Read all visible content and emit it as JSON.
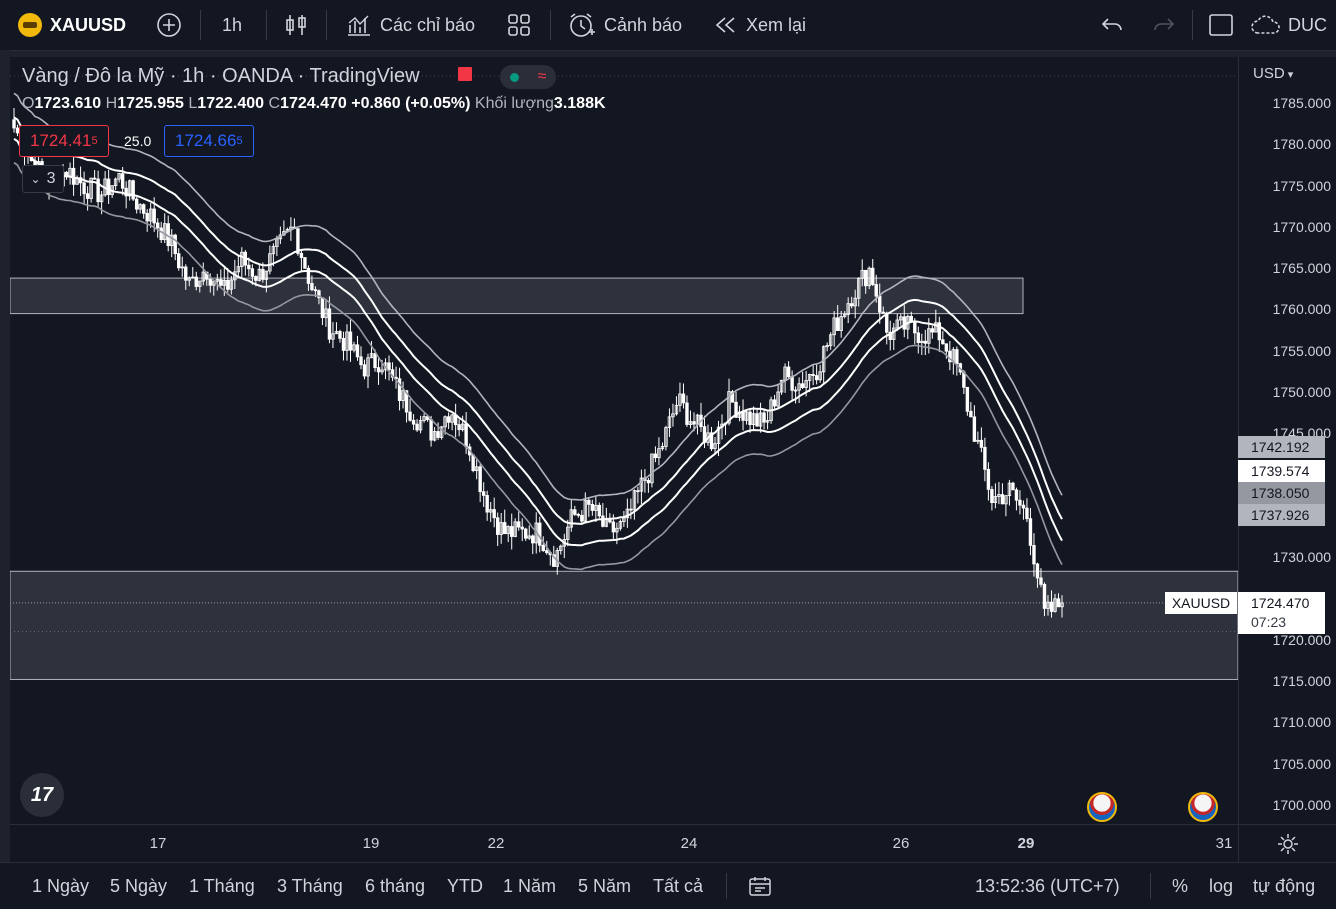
{
  "toolbar": {
    "symbol": "XAUUSD",
    "interval": "1h",
    "indicators": "Các chỉ báo",
    "alerts": "Cảnh báo",
    "replay": "Xem lại",
    "account": "DUC"
  },
  "legend": {
    "title": "Vàng / Đô la Mỹ · 1h · OANDA · TradingView",
    "open_label": "O",
    "open": "1723.610",
    "high_label": "H",
    "high": "1725.955",
    "low_label": "L",
    "low": "1722.400",
    "close_label": "C",
    "close": "1724.470",
    "change": "+0.860 (+0.05%)",
    "volume_label": "Khối lượng",
    "volume": "3.188K",
    "sell_price": "1724.41",
    "sell_price_sup": "5",
    "spread": "25.0",
    "buy_price": "1724.66",
    "buy_price_sup": "5",
    "collapse_count": "3"
  },
  "price_axis": {
    "currency": "USD",
    "ticks": [
      "1785.000",
      "1780.000",
      "1775.000",
      "1770.000",
      "1765.000",
      "1760.000",
      "1755.000",
      "1750.000",
      "1745.000",
      "1730.000",
      "1720.000",
      "1715.000",
      "1710.000",
      "1705.000",
      "1700.000"
    ],
    "badges": [
      "1742.192",
      "1739.574",
      "1738.050",
      "1737.926"
    ],
    "last_price": "1724.470",
    "countdown": "07:23",
    "last_symbol": "XAUUSD"
  },
  "time_axis": {
    "ticks": [
      "17",
      "19",
      "22",
      "24",
      "26",
      "29",
      "31"
    ]
  },
  "bottom": {
    "ranges": [
      "1 Ngày",
      "5 Ngày",
      "1 Tháng",
      "3 Tháng",
      "6 tháng",
      "YTD",
      "1 Năm",
      "5 Năm",
      "Tất cả"
    ],
    "clock": "13:52:36 (UTC+7)",
    "percent": "%",
    "log": "log",
    "auto": "tự động"
  },
  "colors": {
    "background": "#131722",
    "candle": "#ffffff",
    "zone": "rgba(120,123,134,0.28)",
    "sell": "#f23645",
    "buy": "#2962ff"
  },
  "chart_data": {
    "type": "candlestick",
    "symbol": "XAUUSD",
    "interval": "1h",
    "x_ticks": [
      "17",
      "19",
      "22",
      "24",
      "26",
      "29",
      "31"
    ],
    "ylim": [
      1697,
      1790
    ],
    "close_path": [
      1782,
      1778,
      1775,
      1777,
      1775,
      1774,
      1776,
      1773,
      1771,
      1768,
      1763,
      1765,
      1762,
      1766,
      1764,
      1767,
      1770,
      1763,
      1758,
      1756,
      1753,
      1754,
      1750,
      1747,
      1745,
      1748,
      1744,
      1737,
      1733,
      1733,
      1733,
      1730,
      1735,
      1736,
      1733,
      1734,
      1739,
      1743,
      1749,
      1746,
      1744,
      1749,
      1747,
      1746,
      1752,
      1751,
      1753,
      1758,
      1762,
      1765,
      1757,
      1758,
      1757,
      1757,
      1753,
      1745,
      1737,
      1738,
      1735,
      1723,
      1724.47
    ],
    "resistance_zone": [
      1759.5,
      1763.8
    ],
    "support_zone": [
      1715.2,
      1728.3
    ],
    "envelope_lines_last": [
      1742.192,
      1739.574,
      1738.05,
      1737.926
    ]
  }
}
